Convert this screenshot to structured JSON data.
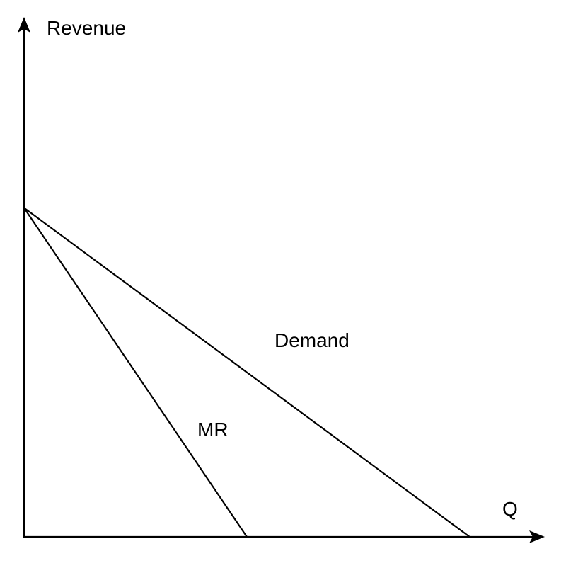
{
  "chart_data": {
    "type": "line",
    "ylabel": "Revenue",
    "xlabel": "Q",
    "xlim": [
      0,
      2
    ],
    "ylim": [
      0,
      1.55
    ],
    "grid": false,
    "series": [
      {
        "name": "Demand",
        "x": [
          0,
          1.95
        ],
        "y": [
          1,
          0
        ]
      },
      {
        "name": "MR",
        "x": [
          0,
          0.975
        ],
        "y": [
          1,
          0
        ]
      }
    ],
    "colors": {
      "line": "#000000",
      "background": "#ffffff"
    }
  }
}
